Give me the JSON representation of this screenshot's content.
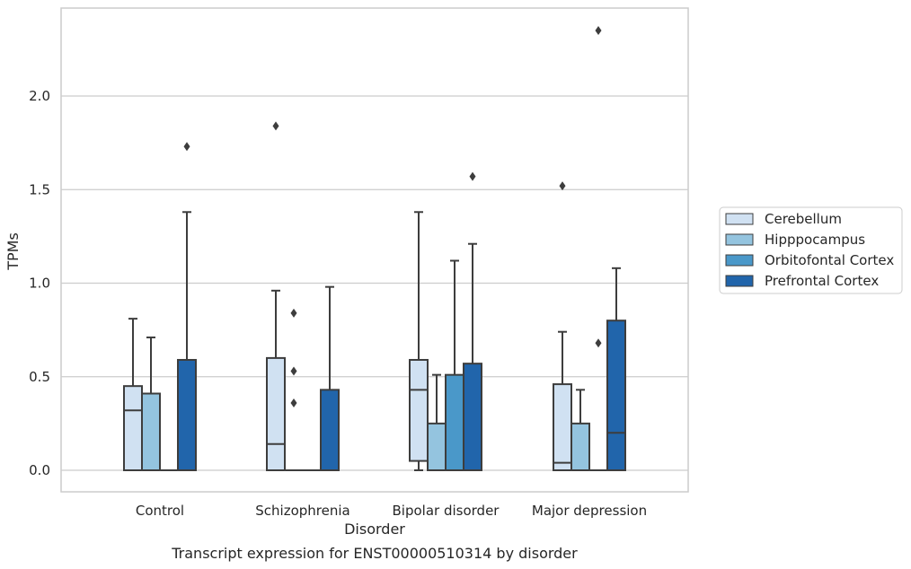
{
  "chart_data": {
    "type": "box",
    "title": "",
    "caption": "Transcript expression for ENST00000510314 by disorder",
    "xlabel": "Disorder",
    "ylabel": "TPMs",
    "ylim": [
      -0.11,
      2.48
    ],
    "yticks": [
      "0.0",
      "0.5",
      "1.0",
      "1.5",
      "2.0"
    ],
    "grid": "horizontal",
    "legend_position": "right",
    "categories": [
      "Control",
      "Schizophrenia",
      "Bipolar disorder",
      "Major depression"
    ],
    "series": [
      {
        "name": "Cerebellum",
        "color": "#d0e1f2",
        "boxes": [
          {
            "q1": 0.0,
            "median": 0.32,
            "q3": 0.45,
            "whisker_low": 0.0,
            "whisker_high": 0.81,
            "outliers": []
          },
          {
            "q1": 0.0,
            "median": 0.14,
            "q3": 0.6,
            "whisker_low": 0.0,
            "whisker_high": 0.96,
            "outliers": [
              1.84
            ]
          },
          {
            "q1": 0.05,
            "median": 0.43,
            "q3": 0.59,
            "whisker_low": 0.0,
            "whisker_high": 1.38,
            "outliers": []
          },
          {
            "q1": 0.0,
            "median": 0.04,
            "q3": 0.46,
            "whisker_low": 0.0,
            "whisker_high": 0.74,
            "outliers": [
              1.52
            ]
          }
        ]
      },
      {
        "name": "Hipppocampus",
        "color": "#94c4df",
        "boxes": [
          {
            "q1": 0.0,
            "median": 0.0,
            "q3": 0.41,
            "whisker_low": 0.0,
            "whisker_high": 0.71,
            "outliers": []
          },
          {
            "q1": 0.0,
            "median": 0.0,
            "q3": 0.0,
            "whisker_low": 0.0,
            "whisker_high": 0.0,
            "outliers": [
              0.84,
              0.53,
              0.36
            ]
          },
          {
            "q1": 0.0,
            "median": 0.0,
            "q3": 0.25,
            "whisker_low": 0.0,
            "whisker_high": 0.51,
            "outliers": []
          },
          {
            "q1": 0.0,
            "median": 0.0,
            "q3": 0.25,
            "whisker_low": 0.0,
            "whisker_high": 0.43,
            "outliers": []
          }
        ]
      },
      {
        "name": "Orbitofontal Cortex",
        "color": "#4a98c9",
        "boxes": [
          {
            "q1": 0.0,
            "median": 0.0,
            "q3": 0.0,
            "whisker_low": 0.0,
            "whisker_high": 0.0,
            "outliers": []
          },
          {
            "q1": 0.0,
            "median": 0.0,
            "q3": 0.0,
            "whisker_low": 0.0,
            "whisker_high": 0.0,
            "outliers": []
          },
          {
            "q1": 0.0,
            "median": 0.0,
            "q3": 0.51,
            "whisker_low": 0.0,
            "whisker_high": 1.12,
            "outliers": []
          },
          {
            "q1": 0.0,
            "median": 0.0,
            "q3": 0.0,
            "whisker_low": 0.0,
            "whisker_high": 0.0,
            "outliers": [
              0.68,
              2.35
            ]
          }
        ]
      },
      {
        "name": "Prefrontal Cortex",
        "color": "#2165ab",
        "boxes": [
          {
            "q1": 0.0,
            "median": 0.0,
            "q3": 0.59,
            "whisker_low": 0.0,
            "whisker_high": 1.38,
            "outliers": [
              1.73
            ]
          },
          {
            "q1": 0.0,
            "median": 0.0,
            "q3": 0.43,
            "whisker_low": 0.0,
            "whisker_high": 0.98,
            "outliers": []
          },
          {
            "q1": 0.0,
            "median": 0.0,
            "q3": 0.57,
            "whisker_low": 0.0,
            "whisker_high": 1.21,
            "outliers": [
              1.57
            ]
          },
          {
            "q1": 0.0,
            "median": 0.2,
            "q3": 0.8,
            "whisker_low": 0.0,
            "whisker_high": 1.08,
            "outliers": []
          }
        ]
      }
    ]
  }
}
